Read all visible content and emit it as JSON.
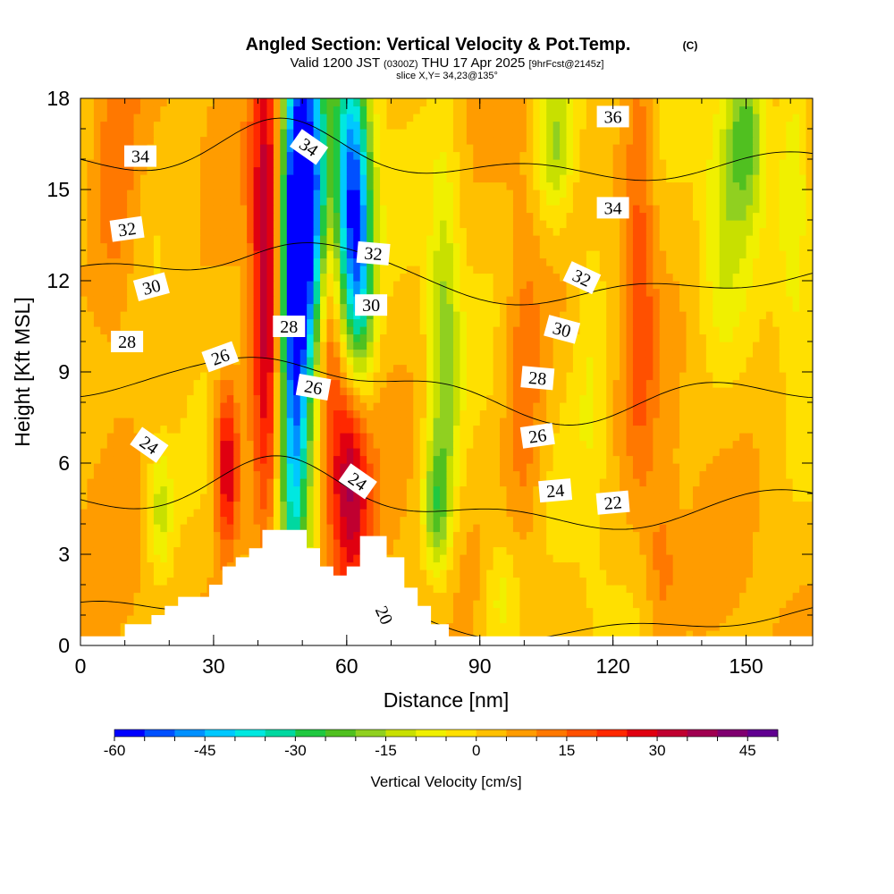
{
  "chart_data": {
    "type": "heatmap",
    "title": "Angled Section: Vertical Velocity & Pot.Temp.",
    "title_mark": "(C)",
    "subtitle_parts": [
      "Valid 1200 JST ",
      "(0300Z)",
      " THU 17 Apr 2025 ",
      "[9hrFcst@2145z]"
    ],
    "slice_label": "slice X,Y= 34,23@135°",
    "xlabel": "Distance [nm]",
    "ylabel": "Height [Kft MSL]",
    "xlim": [
      0,
      165
    ],
    "ylim": [
      0,
      18
    ],
    "x_ticks": [
      0,
      30,
      60,
      90,
      120,
      150
    ],
    "y_ticks": [
      0,
      3,
      6,
      9,
      12,
      15,
      18
    ],
    "colorbar": {
      "label": "Vertical Velocity [cm/s]",
      "min": -60,
      "max": 50,
      "step": 5,
      "ticks": [
        -60,
        -45,
        -30,
        -15,
        0,
        15,
        30,
        45
      ],
      "colors": [
        "#0000ff",
        "#0050ff",
        "#0090ff",
        "#00c8ff",
        "#00e8e0",
        "#00d8a0",
        "#20c840",
        "#50c020",
        "#90d020",
        "#c8e000",
        "#f0f000",
        "#ffe000",
        "#ffc000",
        "#ff9c00",
        "#ff7800",
        "#ff5000",
        "#ff2800",
        "#e00010",
        "#c00030",
        "#a00050",
        "#800070",
        "#600090"
      ]
    },
    "terrain": [
      [
        0,
        0.3
      ],
      [
        10,
        0.3
      ],
      [
        10,
        0.7
      ],
      [
        16,
        0.7
      ],
      [
        16,
        1.0
      ],
      [
        19,
        1.0
      ],
      [
        19,
        1.3
      ],
      [
        22,
        1.3
      ],
      [
        22,
        1.6
      ],
      [
        29,
        1.6
      ],
      [
        29,
        2.0
      ],
      [
        32,
        2.0
      ],
      [
        32,
        2.6
      ],
      [
        35,
        2.6
      ],
      [
        35,
        2.9
      ],
      [
        38,
        2.9
      ],
      [
        38,
        3.2
      ],
      [
        41,
        3.2
      ],
      [
        41,
        3.8
      ],
      [
        51,
        3.8
      ],
      [
        51,
        3.2
      ],
      [
        54,
        3.2
      ],
      [
        54,
        2.6
      ],
      [
        57,
        2.6
      ],
      [
        57,
        2.3
      ],
      [
        60,
        2.3
      ],
      [
        60,
        2.6
      ],
      [
        63,
        2.6
      ],
      [
        63,
        3.6
      ],
      [
        69,
        3.6
      ],
      [
        69,
        2.9
      ],
      [
        73,
        2.9
      ],
      [
        73,
        1.9
      ],
      [
        76,
        1.9
      ],
      [
        76,
        1.3
      ],
      [
        79,
        1.3
      ],
      [
        79,
        0.7
      ],
      [
        83,
        0.7
      ],
      [
        83,
        0.3
      ],
      [
        165,
        0.3
      ]
    ],
    "velocity_features": [
      {
        "x": 48,
        "y": 11.0,
        "sx": 2.5,
        "sy": 6.5,
        "v": -60
      },
      {
        "x": 52,
        "y": 14.5,
        "sx": 3.0,
        "sy": 4.0,
        "v": -55
      },
      {
        "x": 61,
        "y": 15.0,
        "sx": 3.0,
        "sy": 3.5,
        "v": -50
      },
      {
        "x": 63,
        "y": 11.5,
        "sx": 2.5,
        "sy": 3.0,
        "v": -25
      },
      {
        "x": 82,
        "y": 9.5,
        "sx": 2.5,
        "sy": 4.5,
        "v": -20
      },
      {
        "x": 80,
        "y": 4.5,
        "sx": 2.0,
        "sy": 1.5,
        "v": -20
      },
      {
        "x": 107,
        "y": 16.5,
        "sx": 3.0,
        "sy": 2.0,
        "v": -20
      },
      {
        "x": 150,
        "y": 17.0,
        "sx": 3.0,
        "sy": 2.0,
        "v": -25
      },
      {
        "x": 145,
        "y": 14.0,
        "sx": 3.5,
        "sy": 3.0,
        "v": -12
      },
      {
        "x": 161,
        "y": 14.5,
        "sx": 2.5,
        "sy": 3.5,
        "v": -12
      },
      {
        "x": 18,
        "y": 4.5,
        "sx": 2.0,
        "sy": 1.5,
        "v": -15
      },
      {
        "x": 115,
        "y": 10.0,
        "sx": 3.0,
        "sy": 5.0,
        "v": -8
      },
      {
        "x": 95,
        "y": 1.5,
        "sx": 3.0,
        "sy": 1.5,
        "v": -10
      },
      {
        "x": 42,
        "y": 12.5,
        "sx": 2.5,
        "sy": 6.5,
        "v": 32
      },
      {
        "x": 33,
        "y": 6.0,
        "sx": 2.0,
        "sy": 2.0,
        "v": 30
      },
      {
        "x": 61,
        "y": 5.5,
        "sx": 3.0,
        "sy": 3.0,
        "v": 32
      },
      {
        "x": 56,
        "y": 10.5,
        "sx": 2.0,
        "sy": 4.0,
        "v": 18
      },
      {
        "x": 126,
        "y": 13.0,
        "sx": 2.5,
        "sy": 5.0,
        "v": 15
      },
      {
        "x": 100,
        "y": 8.0,
        "sx": 3.0,
        "sy": 4.0,
        "v": 12
      },
      {
        "x": 8,
        "y": 15.0,
        "sx": 4.0,
        "sy": 4.0,
        "v": 12
      },
      {
        "x": 131,
        "y": 2.5,
        "sx": 2.5,
        "sy": 2.0,
        "v": 10
      }
    ],
    "theta_levels": [
      20,
      22,
      24,
      26,
      28,
      30,
      32,
      34,
      36
    ],
    "theta_labels": [
      {
        "text": "34",
        "x": 13.5,
        "y": 16.1,
        "rot": 0
      },
      {
        "text": "32",
        "x": 10.5,
        "y": 13.7,
        "rot": -8
      },
      {
        "text": "30",
        "x": 16,
        "y": 11.8,
        "rot": -15
      },
      {
        "text": "28",
        "x": 10.5,
        "y": 10.0,
        "rot": 0
      },
      {
        "text": "26",
        "x": 31.5,
        "y": 9.5,
        "rot": -20
      },
      {
        "text": "24",
        "x": 15.5,
        "y": 6.6,
        "rot": 35
      },
      {
        "text": "34",
        "x": 51.5,
        "y": 16.4,
        "rot": 35
      },
      {
        "text": "32",
        "x": 66,
        "y": 12.9,
        "rot": 5
      },
      {
        "text": "30",
        "x": 65.5,
        "y": 11.2,
        "rot": 0
      },
      {
        "text": "28",
        "x": 47,
        "y": 10.5,
        "rot": 0
      },
      {
        "text": "26",
        "x": 52.5,
        "y": 8.5,
        "rot": 10
      },
      {
        "text": "24",
        "x": 62.5,
        "y": 5.4,
        "rot": 35
      },
      {
        "text": "20",
        "x": 68.5,
        "y": 1.0,
        "rot": 65
      },
      {
        "text": "36",
        "x": 120,
        "y": 17.4,
        "rot": 0
      },
      {
        "text": "34",
        "x": 120,
        "y": 14.4,
        "rot": 0
      },
      {
        "text": "32",
        "x": 113,
        "y": 12.1,
        "rot": 25
      },
      {
        "text": "30",
        "x": 108.5,
        "y": 10.4,
        "rot": 15
      },
      {
        "text": "28",
        "x": 103,
        "y": 8.8,
        "rot": 5
      },
      {
        "text": "26",
        "x": 103,
        "y": 6.9,
        "rot": -8
      },
      {
        "text": "24",
        "x": 107,
        "y": 5.1,
        "rot": -5
      },
      {
        "text": "22",
        "x": 120,
        "y": 4.7,
        "rot": -5
      }
    ]
  }
}
